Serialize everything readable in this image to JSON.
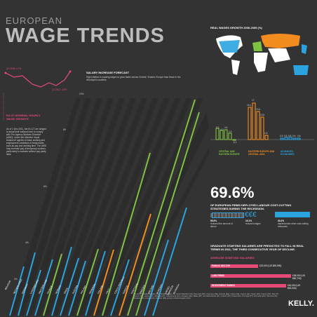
{
  "title": {
    "line1": "EUROPEAN",
    "line2": "WAGE TRENDS"
  },
  "eu_nominal": {
    "title": "EU-27 NOMINAL HOURLY WAGE GROWTH",
    "q1_2006": "Q1 2006: 4.7%",
    "q1_2011": "Q1 2011: 2.6%",
    "body": "As of 1 Dec 2011, the EU-27 are obliged to adopt their national laws to comply with The Agency Workers Directive (AWD). Under the directive 'equal treatment' applies to basic working and employment conditions of temporaries such as pay and working time. The AWD may increase pay of temporary workers, particularly in markets without pay parity laws."
  },
  "salary_forecast": {
    "title": "SALARY INCREASE FORECAST",
    "subtitle": "High inflation is causing wages to grow faster across Central / Eastern Europe than those in the developed countries.",
    "y_ticks": [
      "10%",
      "8%",
      "6%",
      "4%",
      "2%"
    ],
    "countries": [
      "BELGIUM",
      "NETHERLANDS",
      "GERMANY",
      "LUXEMBOURG",
      "SWITZERLAND",
      "FRANCE",
      "NORWAY",
      "SPAIN",
      "AUSTRIA",
      "POLAND",
      "DENMARK",
      "FINLAND",
      "ITALY",
      "CZECH REPUBLIC",
      "GREECE",
      "PORTUGAL",
      "SWEDEN",
      "IRELAND",
      "HUNGARY",
      "UNITED KINGDOM",
      "SLOVAKIA",
      "ROMANIA",
      "RUSSIA",
      "CROATIA",
      "UKRAINE"
    ],
    "footnote": "The EU27 includes Belgium (BE), Bulgaria (BG), the Czech Republic (CZ), Denmark (DK), Germany (DE), Estonia (EE), Ireland (IE), Greece (EL), Spain (ES), France (FR), Italy (IT), Cyprus (CY), Latvia (LV), Lithuania (LT), Luxembourg (LU), Hungary (HU), Malta (MT), the Netherlands (NL), Austria (AT), Poland (PL), Portugal (PT), Romania (RO), Slovenia (SI), Slovakia (SK), Finland (FI), Sweden (SE) and the United Kingdom (UK)."
  },
  "real_wages": {
    "title": "REAL WAGES GROWTH 2000-2009 (%)",
    "groups": [
      {
        "name": "CENTRAL AND EASTERN EUROPE",
        "color": "#7fc142"
      },
      {
        "name": "EASTERN EUROPE AND CENTRAL ASIA",
        "color": "#f28c1f"
      },
      {
        "name": "ADVANCED ECONOMIES",
        "color": "#2aa3df"
      }
    ],
    "labels": [
      "5.2",
      "4.3",
      "4.4",
      "2.9",
      "-0.1",
      "15.1",
      "17",
      "13.4",
      "10.6",
      "1.8",
      "0.5",
      "0.9",
      "0.8",
      "0.6",
      "0.6"
    ]
  },
  "cost_cutting": {
    "percent": "69.6%",
    "text": "OF EUROPEAN FIRMS DEPLOYED LABOUR COST-CUTTING STRATEGIES DURING THE RECESSION.",
    "stats": [
      {
        "value": "59.5%",
        "desc": "reduced the amount of labour"
      },
      {
        "value": "10.1%",
        "desc": "reduced wages"
      },
      {
        "value": "30.4%",
        "desc": "implemented other cost-cutting measures"
      }
    ]
  },
  "graduate": {
    "text": "GRADUATE STARTING SALARIES ARE PREDICTED TO FALL IN REAL TERMS IN 2011, THE THIRD CONSECUTIVE YEAR OF DECLINE.",
    "subtitle": "AVERAGE STARTING SALARIES:",
    "items": [
      {
        "label": "PUBLIC SECTOR",
        "value": "£22,600 (US $35,990)"
      },
      {
        "label": "LAW FIRMS",
        "value": "£38,000 (US $60,718)"
      },
      {
        "label": "INVESTMENT BANKS",
        "value": "£40,000 (US $63,930)"
      }
    ]
  },
  "brand": "KELLY."
}
